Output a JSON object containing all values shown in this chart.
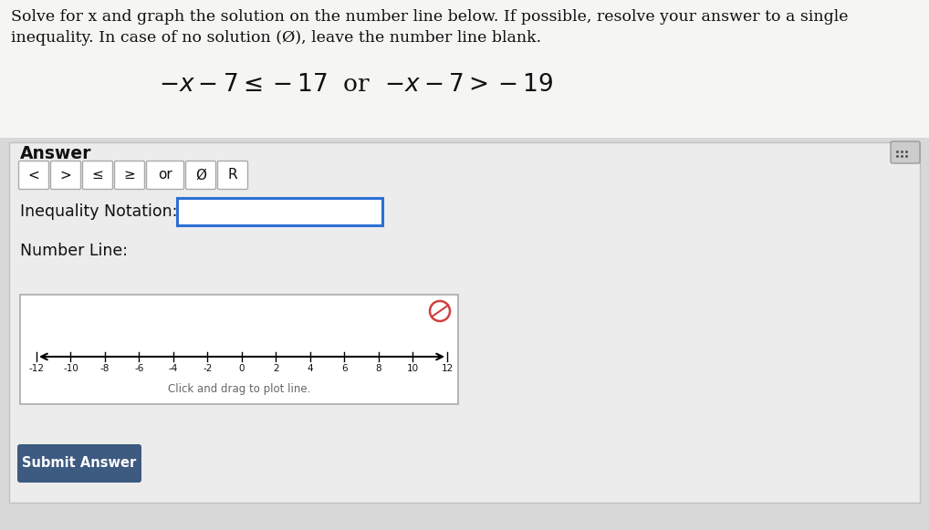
{
  "bg_color": "#d8d8d8",
  "top_bg": "#f5f5f5",
  "answer_bg": "#e8e8e8",
  "white": "#ffffff",
  "title_text_line1": "Solve for x and graph the solution on the number line below. If possible, resolve your answer to a single",
  "title_text_line2": "inequality. In case of no solution (Ø), leave the number line blank.",
  "equation": "$-x-7\\leq-17$  or  $-x-7>-19$",
  "answer_label": "Answer",
  "buttons": [
    "<",
    ">",
    "≤",
    "≥",
    "or",
    "Ø",
    "R"
  ],
  "inequality_label": "Inequality Notation:",
  "number_line_label": "Number Line:",
  "number_line_ticks": [
    -12,
    -10,
    -8,
    -6,
    -4,
    -2,
    0,
    2,
    4,
    6,
    8,
    10,
    12
  ],
  "drag_text": "Click and drag to plot line.",
  "submit_text": "Submit Answer",
  "submit_bg": "#3d5a80",
  "submit_fg": "#ffffff",
  "box_border_color": "#2d6fd4",
  "undo_stroke": "#d04040",
  "keyboard_bg": "#cccccc",
  "keyboard_border": "#999999"
}
